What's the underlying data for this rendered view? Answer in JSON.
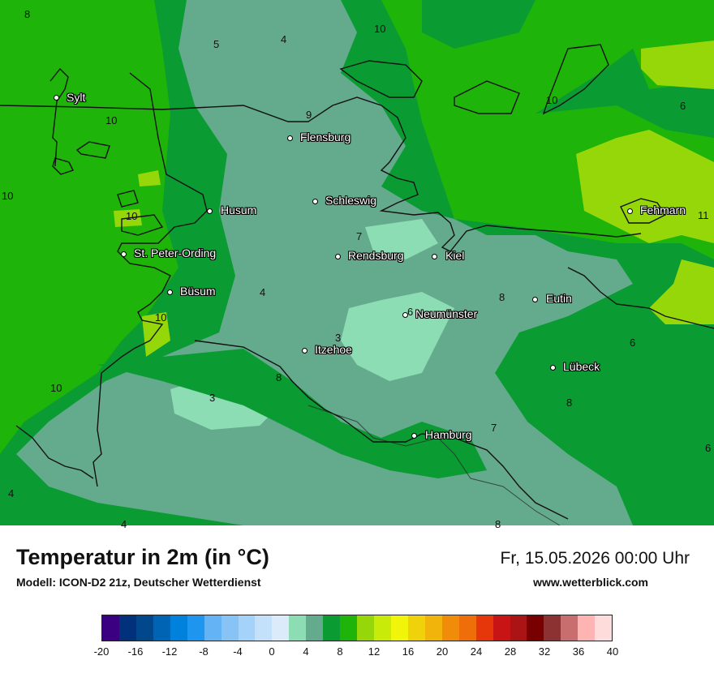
{
  "map": {
    "title": "Temperatur in 2m (in °C)",
    "subtitle": "Modell: ICON-D2 21z, Deutscher Wetterdienst",
    "valid_time": "Fr, 15.05.2026 00:00 Uhr",
    "source": "www.wetterblick.com",
    "cities": [
      {
        "name": "Sylt"
      },
      {
        "name": "Flensburg"
      },
      {
        "name": "Schleswig"
      },
      {
        "name": "Husum"
      },
      {
        "name": "St. Peter-Ording"
      },
      {
        "name": "Rendsburg"
      },
      {
        "name": "Kiel"
      },
      {
        "name": "Büsum"
      },
      {
        "name": "Neumünster"
      },
      {
        "name": "Eutin"
      },
      {
        "name": "Fehmarn"
      },
      {
        "name": "Itzehoe"
      },
      {
        "name": "Lübeck"
      },
      {
        "name": "Hamburg"
      }
    ],
    "isolines": [
      "8",
      "5",
      "4",
      "10",
      "10",
      "6",
      "10",
      "9",
      "10",
      "10",
      "11",
      "7",
      "4",
      "6",
      "8",
      "3",
      "10",
      "6",
      "8",
      "3",
      "10",
      "8",
      "7",
      "6",
      "4",
      "4",
      "8"
    ],
    "legend": {
      "ticks": [
        "-20",
        "-16",
        "-12",
        "-8",
        "-4",
        "0",
        "4",
        "8",
        "12",
        "16",
        "20",
        "24",
        "28",
        "32",
        "36",
        "40"
      ],
      "colors": [
        "#3b0082",
        "#00317a",
        "#00478c",
        "#0064b4",
        "#0082dc",
        "#1e96f0",
        "#64b4f5",
        "#87c3f5",
        "#a5d2f8",
        "#c3e1fa",
        "#dcebfa",
        "#8cdcb4",
        "#64aa8c",
        "#0a9b32",
        "#1eb40a",
        "#96d70a",
        "#c8eb0a",
        "#f0f50a",
        "#f0d20a",
        "#f0b40a",
        "#f08c0a",
        "#f06e0a",
        "#e6370a",
        "#c81414",
        "#aa1414",
        "#780000",
        "#8c3232",
        "#c86e6e",
        "#ffb4b4",
        "#ffdcdc"
      ]
    },
    "field_colors": {
      "t4_6": "#64aa8c",
      "t3": "#8cdcb4",
      "t8_10": "#0a9b32",
      "t10_12": "#1eb40a",
      "t12": "#96d70a"
    }
  }
}
